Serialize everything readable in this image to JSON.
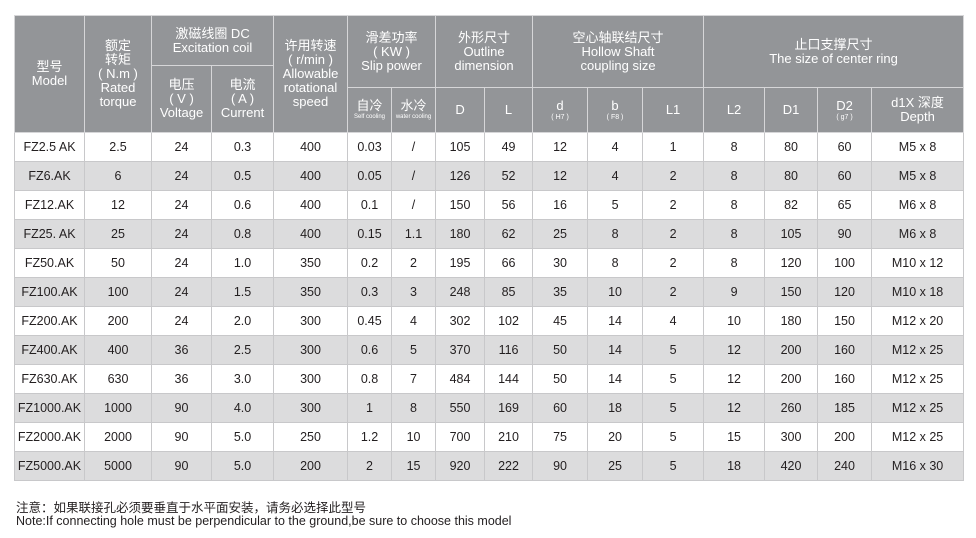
{
  "header": {
    "model": [
      "型号",
      "Model"
    ],
    "torque": [
      "额定",
      "转矩",
      "( N.m )",
      "Rated",
      "torque"
    ],
    "excitation": [
      "激磁线圈 DC",
      "Excitation coil"
    ],
    "voltage": [
      "电压",
      "( V )",
      "Voltage"
    ],
    "current": [
      "电流",
      "( A )",
      "Current"
    ],
    "speed": [
      "许用转速",
      "( r/min )",
      "Allowable",
      "rotational",
      "speed"
    ],
    "slip": [
      "滑差功率",
      "( KW )",
      "Slip power"
    ],
    "self_cooling": [
      "自冷",
      "Self cooling"
    ],
    "water_cooling": [
      "水冷",
      "water cooling"
    ],
    "outline": [
      "外形尺寸",
      "Outline",
      "dimension"
    ],
    "D": "D",
    "L": "L",
    "hollow": [
      "空心轴联结尺寸",
      "Hollow Shaft",
      "coupling size"
    ],
    "d": [
      "d",
      "( H7 )"
    ],
    "b": [
      "b",
      "( F8 )"
    ],
    "L1": "L1",
    "center": [
      "止口支撑尺寸",
      "The size of center ring"
    ],
    "L2": "L2",
    "D1": "D1",
    "D2": [
      "D2",
      "( g7 )"
    ],
    "depth": [
      "d1X 深度",
      "Depth"
    ]
  },
  "rows": [
    [
      "FZ2.5 AK",
      "2.5",
      "24",
      "0.3",
      "400",
      "0.03",
      "/",
      "105",
      "49",
      "12",
      "4",
      "1",
      "8",
      "80",
      "60",
      "M5 x 8"
    ],
    [
      "FZ6.AK",
      "6",
      "24",
      "0.5",
      "400",
      "0.05",
      "/",
      "126",
      "52",
      "12",
      "4",
      "2",
      "8",
      "80",
      "60",
      "M5 x 8"
    ],
    [
      "FZ12.AK",
      "12",
      "24",
      "0.6",
      "400",
      "0.1",
      "/",
      "150",
      "56",
      "16",
      "5",
      "2",
      "8",
      "82",
      "65",
      "M6 x 8"
    ],
    [
      "FZ25. AK",
      "25",
      "24",
      "0.8",
      "400",
      "0.15",
      "1.1",
      "180",
      "62",
      "25",
      "8",
      "2",
      "8",
      "105",
      "90",
      "M6 x 8"
    ],
    [
      "FZ50.AK",
      "50",
      "24",
      "1.0",
      "350",
      "0.2",
      "2",
      "195",
      "66",
      "30",
      "8",
      "2",
      "8",
      "120",
      "100",
      "M10 x 12"
    ],
    [
      "FZ100.AK",
      "100",
      "24",
      "1.5",
      "350",
      "0.3",
      "3",
      "248",
      "85",
      "35",
      "10",
      "2",
      "9",
      "150",
      "120",
      "M10 x 18"
    ],
    [
      "FZ200.AK",
      "200",
      "24",
      "2.0",
      "300",
      "0.45",
      "4",
      "302",
      "102",
      "45",
      "14",
      "4",
      "10",
      "180",
      "150",
      "M12 x 20"
    ],
    [
      "FZ400.AK",
      "400",
      "36",
      "2.5",
      "300",
      "0.6",
      "5",
      "370",
      "116",
      "50",
      "14",
      "5",
      "12",
      "200",
      "160",
      "M12 x 25"
    ],
    [
      "FZ630.AK",
      "630",
      "36",
      "3.0",
      "300",
      "0.8",
      "7",
      "484",
      "144",
      "50",
      "14",
      "5",
      "12",
      "200",
      "160",
      "M12 x 25"
    ],
    [
      "FZ1000.AK",
      "1000",
      "90",
      "4.0",
      "300",
      "1",
      "8",
      "550",
      "169",
      "60",
      "18",
      "5",
      "12",
      "260",
      "185",
      "M12 x 25"
    ],
    [
      "FZ2000.AK",
      "2000",
      "90",
      "5.0",
      "250",
      "1.2",
      "10",
      "700",
      "210",
      "75",
      "20",
      "5",
      "15",
      "300",
      "200",
      "M12 x 25"
    ],
    [
      "FZ5000.AK",
      "5000",
      "90",
      "5.0",
      "200",
      "2",
      "15",
      "920",
      "222",
      "90",
      "25",
      "5",
      "18",
      "420",
      "240",
      "M16 x 30"
    ]
  ],
  "notes": {
    "cn": "注意：如果联接孔必须要垂直于水平面安装，请务必选择此型号",
    "en": "Note:If connecting hole must be perpendicular to the ground,be sure to choose this model"
  },
  "colors": {
    "header_bg": "#939598",
    "alt_row_bg": "#dcdcdd"
  }
}
